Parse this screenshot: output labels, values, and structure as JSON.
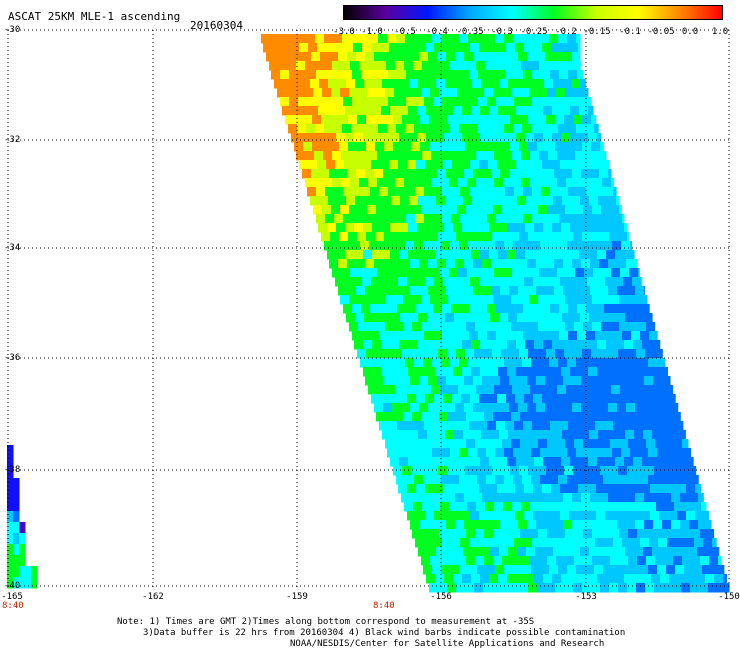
{
  "header": {
    "title": "ASCAT 25KM MLE-1 ascending",
    "date": "20160304"
  },
  "colorbar": {
    "ticks": [
      "-3.0",
      "-1.0",
      "-0.5",
      "-0.4",
      "-0.35",
      "-0.3",
      "-0.25",
      "-0.2",
      "-0.15",
      "-0.1",
      "-0.05",
      "0.0",
      "1.0"
    ],
    "colors": [
      "#000000",
      "#5a00a0",
      "#0018ff",
      "#00a8ff",
      "#00ffff",
      "#00ff20",
      "#c8ff00",
      "#ffff00",
      "#ff8800",
      "#ff0000"
    ]
  },
  "map": {
    "lat_labels": [
      "-30",
      "-32",
      "-34",
      "-36",
      "-38",
      "-40"
    ],
    "lon_labels": [
      "-165",
      "-162",
      "-159",
      "-156",
      "-153",
      "-150"
    ],
    "time_labels": [
      "8:40",
      "8:40"
    ],
    "swath_colors": {
      "orange": "#ff8c00",
      "yellow": "#ffff00",
      "yellowgreen": "#c8ff00",
      "green": "#00ff20",
      "cyan": "#00ffff",
      "lightblue": "#00c8ff",
      "blue": "#0070ff",
      "darkblue": "#1010ff",
      "purple": "#5000c0"
    }
  },
  "notes": {
    "line1": "Note: 1) Times are GMT 2)Times along bottom correspond to measurement at -35S",
    "line2": "3)Data buffer is 22 hrs from 20160304 4) Black wind barbs indicate possible contamination",
    "line3": "NOAA/NESDIS/Center for Satellite Applications and Research"
  }
}
